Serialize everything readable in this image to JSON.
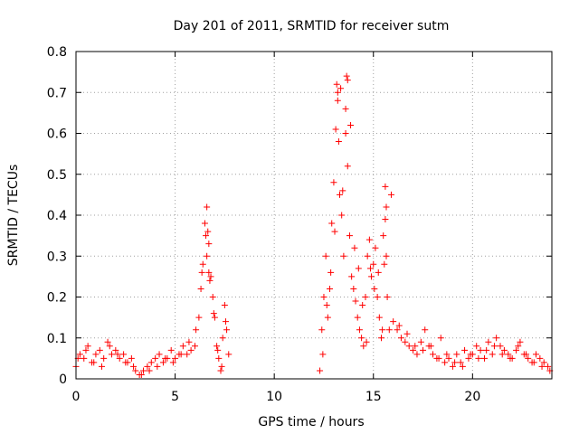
{
  "chart_data": {
    "type": "scatter",
    "title": "Day 201 of 2011, SRMTID for receiver sutm",
    "xlabel": "GPS time / hours",
    "ylabel": "SRMTID / TECUs",
    "xlim": [
      0,
      24
    ],
    "ylim": [
      0,
      0.8
    ],
    "x_ticks": [
      0,
      5,
      10,
      15,
      20
    ],
    "x_tick_labels": [
      "0",
      "5",
      "10",
      "15",
      "20"
    ],
    "y_ticks": [
      0,
      0.1,
      0.2,
      0.3,
      0.4,
      0.5,
      0.6,
      0.7,
      0.8
    ],
    "y_tick_labels": [
      "0",
      "0.1",
      "0.2",
      "0.3",
      "0.4",
      "0.5",
      "0.6",
      "0.7",
      "0.8"
    ],
    "grid": true,
    "marker": "+",
    "color": "#ff0000",
    "series": [
      {
        "name": "SRMTID",
        "x": [
          0.0,
          0.2,
          0.4,
          0.6,
          0.8,
          1.0,
          1.2,
          1.4,
          1.6,
          1.8,
          2.0,
          2.2,
          2.4,
          2.6,
          2.8,
          3.0,
          3.2,
          3.4,
          3.6,
          3.8,
          4.0,
          4.2,
          4.4,
          4.6,
          4.8,
          5.0,
          5.2,
          5.4,
          5.6,
          5.8,
          6.0,
          6.2,
          6.3,
          6.4,
          6.5,
          6.6,
          6.7,
          6.8,
          6.9,
          7.0,
          7.1,
          7.2,
          7.3,
          7.4,
          7.5,
          7.6,
          7.7,
          12.3,
          12.4,
          12.5,
          12.6,
          12.7,
          12.8,
          12.9,
          13.0,
          13.1,
          13.2,
          13.3,
          13.4,
          13.5,
          13.6,
          13.7,
          13.8,
          13.9,
          14.0,
          14.1,
          14.2,
          14.3,
          14.4,
          14.5,
          14.6,
          14.7,
          14.8,
          14.9,
          15.0,
          15.1,
          15.2,
          15.3,
          15.4,
          15.5,
          15.6,
          15.7,
          15.8,
          16.0,
          16.2,
          16.4,
          16.6,
          16.8,
          17.0,
          17.2,
          17.4,
          17.6,
          17.8,
          18.0,
          18.2,
          18.4,
          18.6,
          18.8,
          19.0,
          19.2,
          19.4,
          19.6,
          19.8,
          20.0,
          20.2,
          20.4,
          20.6,
          20.8,
          21.0,
          21.2,
          21.4,
          21.6,
          21.8,
          22.0,
          22.2,
          22.4,
          22.6,
          22.8,
          23.0,
          23.2,
          23.4,
          23.6,
          23.8,
          0.1,
          0.5,
          0.9,
          1.3,
          1.7,
          2.1,
          2.5,
          2.9,
          3.3,
          3.7,
          4.1,
          4.5,
          4.9,
          5.3,
          5.7,
          6.05,
          6.35,
          6.55,
          6.75,
          6.95,
          7.15,
          7.35,
          7.55,
          12.45,
          12.65,
          12.85,
          13.05,
          13.25,
          13.45,
          13.65,
          13.85,
          14.05,
          14.25,
          14.45,
          14.65,
          14.85,
          15.05,
          15.25,
          15.45,
          15.65,
          15.9,
          16.3,
          16.7,
          17.1,
          17.5,
          17.9,
          18.3,
          18.7,
          19.1,
          19.5,
          19.9,
          20.3,
          20.7,
          21.1,
          21.5,
          21.9,
          22.3,
          22.7,
          23.1,
          23.5,
          23.9,
          6.6,
          6.65,
          6.7,
          13.15,
          13.2,
          13.35,
          13.6,
          13.7,
          15.6,
          15.65,
          15.55
        ],
        "y": [
          0.03,
          0.06,
          0.05,
          0.08,
          0.04,
          0.06,
          0.07,
          0.05,
          0.09,
          0.06,
          0.07,
          0.05,
          0.06,
          0.04,
          0.05,
          0.02,
          0.01,
          0.02,
          0.03,
          0.04,
          0.05,
          0.06,
          0.04,
          0.05,
          0.07,
          0.05,
          0.06,
          0.08,
          0.06,
          0.07,
          0.08,
          0.15,
          0.22,
          0.28,
          0.38,
          0.3,
          0.33,
          0.25,
          0.2,
          0.15,
          0.08,
          0.05,
          0.02,
          0.1,
          0.18,
          0.12,
          0.06,
          0.02,
          0.12,
          0.2,
          0.3,
          0.15,
          0.22,
          0.38,
          0.48,
          0.61,
          0.7,
          0.45,
          0.4,
          0.3,
          0.66,
          0.52,
          0.35,
          0.25,
          0.22,
          0.19,
          0.15,
          0.12,
          0.1,
          0.08,
          0.2,
          0.3,
          0.34,
          0.25,
          0.28,
          0.32,
          0.2,
          0.15,
          0.1,
          0.35,
          0.39,
          0.2,
          0.12,
          0.14,
          0.12,
          0.1,
          0.09,
          0.08,
          0.07,
          0.06,
          0.09,
          0.12,
          0.08,
          0.06,
          0.05,
          0.1,
          0.04,
          0.05,
          0.03,
          0.06,
          0.04,
          0.07,
          0.05,
          0.06,
          0.08,
          0.07,
          0.05,
          0.09,
          0.06,
          0.1,
          0.08,
          0.07,
          0.06,
          0.05,
          0.07,
          0.09,
          0.06,
          0.05,
          0.04,
          0.06,
          0.05,
          0.04,
          0.03,
          0.05,
          0.07,
          0.04,
          0.03,
          0.08,
          0.06,
          0.04,
          0.03,
          0.01,
          0.02,
          0.03,
          0.05,
          0.04,
          0.06,
          0.09,
          0.12,
          0.26,
          0.35,
          0.24,
          0.16,
          0.07,
          0.03,
          0.14,
          0.06,
          0.18,
          0.26,
          0.36,
          0.58,
          0.46,
          0.74,
          0.62,
          0.32,
          0.27,
          0.18,
          0.09,
          0.27,
          0.22,
          0.26,
          0.12,
          0.3,
          0.45,
          0.13,
          0.11,
          0.08,
          0.07,
          0.08,
          0.05,
          0.06,
          0.04,
          0.03,
          0.06,
          0.05,
          0.07,
          0.08,
          0.06,
          0.05,
          0.08,
          0.06,
          0.04,
          0.03,
          0.02,
          0.42,
          0.36,
          0.26,
          0.72,
          0.68,
          0.71,
          0.6,
          0.73,
          0.47,
          0.42,
          0.28
        ]
      }
    ]
  }
}
